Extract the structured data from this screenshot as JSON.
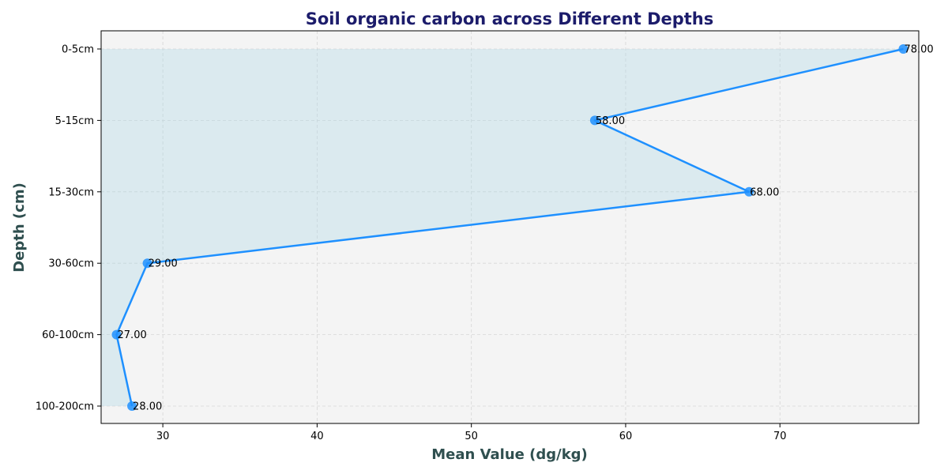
{
  "chart_data": {
    "type": "line",
    "orientation": "horizontal",
    "title": "Soil organic carbon across Different Depths",
    "xlabel": "Mean Value (dg/kg)",
    "ylabel": "Depth (cm)",
    "categories": [
      "0-5cm",
      "5-15cm",
      "15-30cm",
      "30-60cm",
      "60-100cm",
      "100-200cm"
    ],
    "values": [
      78,
      58,
      68,
      29,
      27,
      28
    ],
    "data_labels": [
      "78.00",
      "58.00",
      "68.00",
      "29.00",
      "27.00",
      "28.00"
    ],
    "xlim": [
      26,
      79
    ],
    "xticks": [
      30,
      40,
      50,
      60,
      70
    ],
    "grid": true,
    "fill_area": true,
    "colors": {
      "line": "#1e90ff",
      "marker": "#1e90ff",
      "fill": "#add8e6",
      "background": "#f4f4f4",
      "title": "#1c1c6b",
      "axis_label": "#2f4f4f"
    }
  }
}
